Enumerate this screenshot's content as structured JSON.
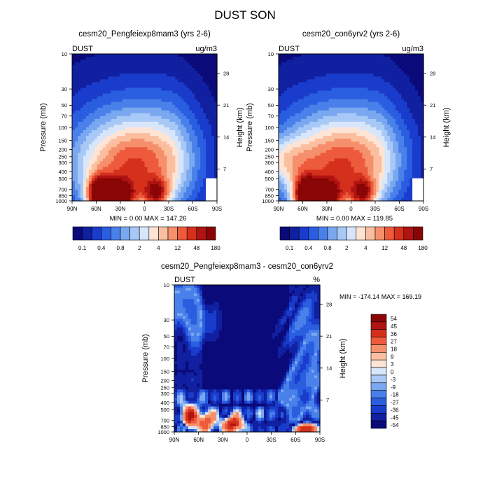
{
  "page": {
    "title": "DUST SON"
  },
  "colors": {
    "abs_scale": [
      "#0a0a7a",
      "#1020a0",
      "#1a3ccc",
      "#2a5ee0",
      "#4a80ea",
      "#7aa8f0",
      "#a8c8f6",
      "#d8e6fb",
      "#fde4d4",
      "#fbbf9f",
      "#f6906c",
      "#ee5a3c",
      "#d4301c",
      "#b01412",
      "#8a0606"
    ],
    "diff_scale": [
      "#0a0a7a",
      "#1020a0",
      "#1a3ccc",
      "#2a5ee0",
      "#4a80ea",
      "#7aa8f0",
      "#a8c8f6",
      "#d8e6fb",
      "#fde4d4",
      "#fbbf9f",
      "#f6906c",
      "#ee5a3c",
      "#d4301c",
      "#b01412",
      "#8a0606"
    ],
    "background_field": "#0a0a7a"
  },
  "chart_data": [
    {
      "type": "heatmap",
      "title": "cesm20_Pengfeiexp8mam3 (yrs 2-6)",
      "left_label": "DUST",
      "right_label": "ug/m3",
      "ylabel": "Pressure (mb)",
      "y2label": "Height (km)",
      "x_ticks": [
        "90N",
        "60N",
        "30N",
        "0",
        "30S",
        "60S",
        "90S"
      ],
      "x_values": [
        90,
        60,
        30,
        0,
        -30,
        -60,
        -90
      ],
      "y_ticks": [
        "10",
        "30",
        "50",
        "70",
        "100",
        "150",
        "200",
        "250",
        "300",
        "400",
        "500",
        "700",
        "850",
        "1000"
      ],
      "y_values": [
        10,
        30,
        50,
        70,
        100,
        150,
        200,
        250,
        300,
        400,
        500,
        700,
        850,
        1000
      ],
      "y2_ticks": [
        "28",
        "21",
        "14",
        "7"
      ],
      "y2_values": [
        28,
        21,
        14,
        7
      ],
      "yscale": "log",
      "xlim": [
        90,
        -90
      ],
      "ylim": [
        10,
        1000
      ],
      "stats": "MIN =   0.00  MAX = 147.26",
      "colorbar_labels": [
        "0.1",
        "0.4",
        "0.8",
        "2",
        "4",
        "12",
        "48",
        "180"
      ],
      "colorbar_orientation": "horizontal"
    },
    {
      "type": "heatmap",
      "title": "cesm20_con6yrv2 (yrs 2-6)",
      "left_label": "DUST",
      "right_label": "ug/m3",
      "ylabel": "Pressure (mb)",
      "y2label": "Height (km)",
      "x_ticks": [
        "90N",
        "60N",
        "30N",
        "0",
        "30S",
        "60S",
        "90S"
      ],
      "x_values": [
        90,
        60,
        30,
        0,
        -30,
        -60,
        -90
      ],
      "y_ticks": [
        "10",
        "30",
        "50",
        "70",
        "100",
        "150",
        "200",
        "250",
        "300",
        "400",
        "500",
        "700",
        "850",
        "1000"
      ],
      "y_values": [
        10,
        30,
        50,
        70,
        100,
        150,
        200,
        250,
        300,
        400,
        500,
        700,
        850,
        1000
      ],
      "y2_ticks": [
        "28",
        "21",
        "14",
        "7"
      ],
      "y2_values": [
        28,
        21,
        14,
        7
      ],
      "yscale": "log",
      "xlim": [
        90,
        -90
      ],
      "ylim": [
        10,
        1000
      ],
      "stats": "MIN =   0.00  MAX = 119.85",
      "colorbar_labels": [
        "0.1",
        "0.4",
        "0.8",
        "2",
        "4",
        "12",
        "48",
        "180"
      ],
      "colorbar_orientation": "horizontal"
    },
    {
      "type": "heatmap",
      "title": "cesm20_Pengfeiexp8mam3 - cesm20_con6yrv2",
      "left_label": "DUST",
      "right_label": "%",
      "ylabel": "Pressure (mb)",
      "y2label": "Height (km)",
      "x_ticks": [
        "90N",
        "60N",
        "30N",
        "0",
        "30S",
        "60S",
        "90S"
      ],
      "x_values": [
        90,
        60,
        30,
        0,
        -30,
        -60,
        -90
      ],
      "y_ticks": [
        "10",
        "30",
        "50",
        "70",
        "100",
        "150",
        "200",
        "250",
        "300",
        "400",
        "500",
        "700",
        "850",
        "1000"
      ],
      "y_values": [
        10,
        30,
        50,
        70,
        100,
        150,
        200,
        250,
        300,
        400,
        500,
        700,
        850,
        1000
      ],
      "y2_ticks": [
        "28",
        "21",
        "14",
        "7"
      ],
      "y2_values": [
        28,
        21,
        14,
        7
      ],
      "yscale": "log",
      "xlim": [
        90,
        -90
      ],
      "ylim": [
        10,
        1000
      ],
      "stats": "MIN = -174.14  MAX = 169.19",
      "colorbar_labels": [
        "54",
        "45",
        "36",
        "27",
        "18",
        "9",
        "3",
        "0",
        "-3",
        "-9",
        "-18",
        "-27",
        "-36",
        "-45",
        "-54"
      ],
      "colorbar_orientation": "vertical"
    }
  ]
}
